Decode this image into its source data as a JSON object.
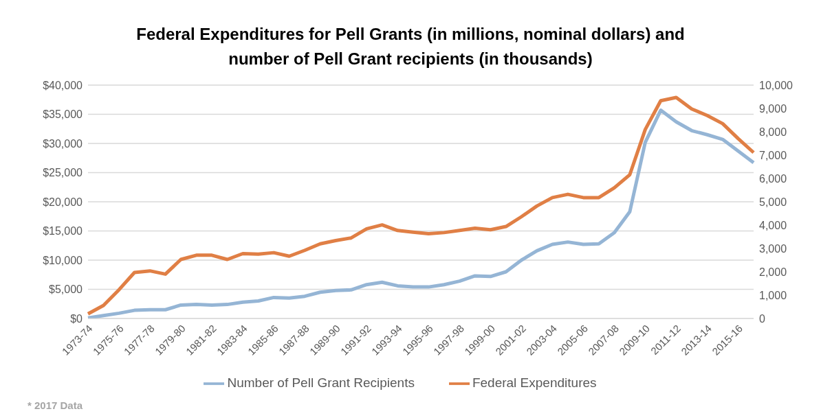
{
  "chart_data": {
    "type": "line",
    "title": "Federal Expenditures for Pell Grants (in millions, nominal dollars) and number of Pell Grant recipients (in thousands)",
    "categories": [
      "1973-74",
      null,
      "1975-76",
      null,
      "1977-78",
      null,
      "1979-80",
      null,
      "1981-82",
      null,
      "1983-84",
      null,
      "1985-86",
      null,
      "1987-88",
      null,
      "1989-90",
      null,
      "1991-92",
      null,
      "1993-94",
      null,
      "1995-96",
      null,
      "1997-98",
      null,
      "1999-00",
      null,
      "2001-02",
      null,
      "2003-04",
      null,
      "2005-06",
      null,
      "2007-08",
      null,
      "2009-10",
      null,
      "2011-12",
      null,
      "2013-14",
      null,
      "2015-16",
      null
    ],
    "series": [
      {
        "name": "Number of Pell Grant Recipients",
        "color": "#95b5d5",
        "axis": "y",
        "values": [
          100,
          500,
          900,
          1400,
          1500,
          1500,
          2300,
          2400,
          2300,
          2400,
          2800,
          3000,
          3600,
          3500,
          3800,
          4500,
          4800,
          4900,
          5800,
          6200,
          5600,
          5400,
          5400,
          5800,
          6400,
          7300,
          7200,
          8000,
          10000,
          11600,
          12700,
          13100,
          12700,
          12800,
          14700,
          18300,
          30200,
          35700,
          33700,
          32200,
          31500,
          30700,
          28700,
          26700
        ]
      },
      {
        "name": "Federal Expenditures",
        "color": "#e07f45",
        "axis": "y2",
        "values": [
          200,
          560,
          1230,
          1970,
          2040,
          1900,
          2530,
          2710,
          2710,
          2530,
          2780,
          2760,
          2820,
          2670,
          2920,
          3200,
          3340,
          3450,
          3840,
          4010,
          3770,
          3700,
          3630,
          3680,
          3770,
          3870,
          3800,
          3940,
          4360,
          4820,
          5180,
          5320,
          5180,
          5180,
          5600,
          6160,
          8100,
          9330,
          9470,
          8980,
          8700,
          8350,
          7710,
          7110
        ]
      }
    ],
    "ylim": [
      0,
      40000
    ],
    "yticks": [
      {
        "value": 0,
        "label": "$0"
      },
      {
        "value": 5000,
        "label": "$5,000"
      },
      {
        "value": 10000,
        "label": "$10,000"
      },
      {
        "value": 15000,
        "label": "$15,000"
      },
      {
        "value": 20000,
        "label": "$20,000"
      },
      {
        "value": 25000,
        "label": "$25,000"
      },
      {
        "value": 30000,
        "label": "$30,000"
      },
      {
        "value": 35000,
        "label": "$35,000"
      },
      {
        "value": 40000,
        "label": "$40,000"
      }
    ],
    "y2lim": [
      0,
      10000
    ],
    "y2ticks": [
      0,
      {
        "value": 1000,
        "label": "1,000"
      },
      {
        "value": 2000,
        "label": "2,000"
      },
      {
        "value": 3000,
        "label": "3,000"
      },
      {
        "value": 4000,
        "label": "4,000"
      },
      {
        "value": 5000,
        "label": "5,000"
      },
      {
        "value": 6000,
        "label": "6,000"
      },
      {
        "value": 7000,
        "label": "7,000"
      },
      {
        "value": 8000,
        "label": "8,000"
      },
      {
        "value": 9000,
        "label": "9,000"
      },
      {
        "value": 10000,
        "label": "10,000"
      }
    ],
    "grid": "y",
    "legend": "bottom",
    "marker": "none",
    "line_style": "solid",
    "annotations": [
      "* 2017 Data"
    ]
  }
}
